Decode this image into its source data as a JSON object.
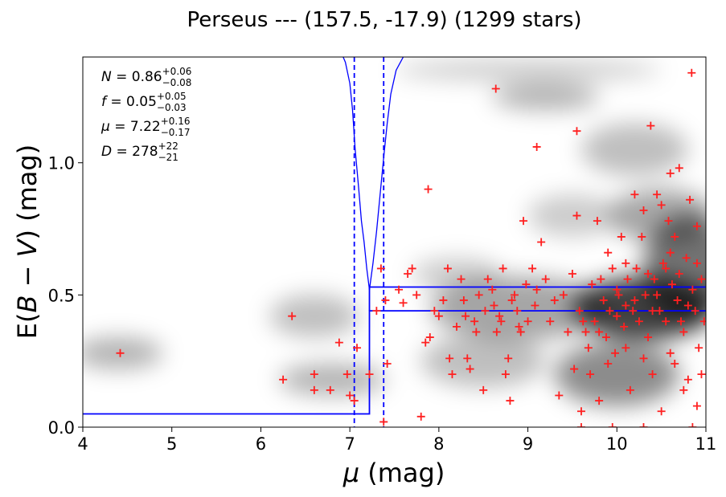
{
  "chart_data": {
    "type": "scatter",
    "title": "Perseus --- (157.5, -17.9) (1299 stars)",
    "xlabel_symbol": "μ",
    "xlabel_unit": " (mag)",
    "ylabel_prefix": "E(",
    "ylabel_symbol": "B − V",
    "ylabel_unit": ") (mag)",
    "xlim": [
      4,
      11
    ],
    "ylim": [
      0,
      1.4
    ],
    "xticks": [
      {
        "value": 4,
        "label": "4"
      },
      {
        "value": 5,
        "label": "5"
      },
      {
        "value": 6,
        "label": "6"
      },
      {
        "value": 7,
        "label": "7"
      },
      {
        "value": 8,
        "label": "8"
      },
      {
        "value": 9,
        "label": "9"
      },
      {
        "value": 10,
        "label": "10"
      },
      {
        "value": 11,
        "label": "11"
      }
    ],
    "yticks": [
      {
        "value": 0.0,
        "label": "0.0"
      },
      {
        "value": 0.5,
        "label": "0.5"
      },
      {
        "value": 1.0,
        "label": "1.0"
      }
    ],
    "colors": {
      "points": "#ff2020",
      "model": "#0000ff",
      "density": "#000000"
    },
    "fit_parameters": [
      {
        "symbol": "N",
        "value": "0.86",
        "plus": "+0.06",
        "minus": "−0.08"
      },
      {
        "symbol": "f",
        "value": "0.05",
        "plus": "+0.05",
        "minus": "−0.03"
      },
      {
        "symbol": "μ",
        "value": "7.22",
        "plus": "+0.16",
        "minus": "−0.17"
      },
      {
        "symbol": "D",
        "value": "278",
        "plus": "+22",
        "minus": "−21"
      }
    ],
    "model": {
      "foreground_reddening": 0.05,
      "step_distance": 7.22,
      "step_distance_low": 7.05,
      "step_distance_high": 7.38,
      "reddening_band": [
        0.44,
        0.53
      ],
      "band_start": 7.22
    },
    "density_blobs": [
      {
        "x": 4.4,
        "y": 0.28,
        "sx": 0.5,
        "sy": 0.06,
        "w": 0.3
      },
      {
        "x": 6.6,
        "y": 0.42,
        "sx": 0.5,
        "sy": 0.08,
        "w": 0.25
      },
      {
        "x": 6.8,
        "y": 0.18,
        "sx": 0.6,
        "sy": 0.06,
        "w": 0.3
      },
      {
        "x": 8.9,
        "y": 0.45,
        "sx": 1.0,
        "sy": 0.12,
        "w": 0.35
      },
      {
        "x": 10.3,
        "y": 0.45,
        "sx": 0.8,
        "sy": 0.12,
        "w": 0.75
      },
      {
        "x": 10.8,
        "y": 0.6,
        "sx": 0.5,
        "sy": 0.2,
        "w": 0.55
      },
      {
        "x": 10.0,
        "y": 0.2,
        "sx": 0.7,
        "sy": 0.12,
        "w": 0.45
      },
      {
        "x": 10.5,
        "y": 0.8,
        "sx": 0.6,
        "sy": 0.1,
        "w": 0.35
      },
      {
        "x": 8.5,
        "y": 0.25,
        "sx": 0.7,
        "sy": 0.1,
        "w": 0.25
      },
      {
        "x": 8.2,
        "y": 0.58,
        "sx": 0.5,
        "sy": 0.06,
        "w": 0.2
      },
      {
        "x": 9.2,
        "y": 1.25,
        "sx": 0.6,
        "sy": 0.05,
        "w": 0.3
      },
      {
        "x": 10.2,
        "y": 1.05,
        "sx": 0.6,
        "sy": 0.1,
        "w": 0.25
      },
      {
        "x": 9.0,
        "y": 1.35,
        "sx": 1.5,
        "sy": 0.04,
        "w": 0.2
      },
      {
        "x": 9.5,
        "y": 0.8,
        "sx": 0.5,
        "sy": 0.08,
        "w": 0.2
      }
    ],
    "points": [
      [
        4.42,
        0.28
      ],
      [
        6.25,
        0.18
      ],
      [
        6.35,
        0.42
      ],
      [
        6.6,
        0.2
      ],
      [
        6.6,
        0.14
      ],
      [
        6.78,
        0.14
      ],
      [
        6.88,
        0.32
      ],
      [
        6.97,
        0.2
      ],
      [
        7.0,
        0.12
      ],
      [
        7.05,
        0.1
      ],
      [
        7.08,
        0.3
      ],
      [
        7.22,
        0.2
      ],
      [
        7.3,
        0.44
      ],
      [
        7.35,
        0.6
      ],
      [
        7.4,
        0.48
      ],
      [
        7.42,
        0.24
      ],
      [
        7.38,
        0.02
      ],
      [
        7.55,
        0.52
      ],
      [
        7.6,
        0.47
      ],
      [
        7.65,
        0.58
      ],
      [
        7.7,
        0.6
      ],
      [
        7.75,
        0.5
      ],
      [
        7.8,
        0.04
      ],
      [
        7.85,
        0.32
      ],
      [
        7.88,
        0.9
      ],
      [
        7.9,
        0.34
      ],
      [
        7.95,
        0.44
      ],
      [
        8.0,
        0.42
      ],
      [
        8.05,
        0.48
      ],
      [
        8.1,
        0.6
      ],
      [
        8.12,
        0.26
      ],
      [
        8.15,
        0.2
      ],
      [
        8.2,
        0.38
      ],
      [
        8.25,
        0.56
      ],
      [
        8.28,
        0.48
      ],
      [
        8.3,
        0.42
      ],
      [
        8.32,
        0.26
      ],
      [
        8.35,
        0.22
      ],
      [
        8.4,
        0.4
      ],
      [
        8.42,
        0.36
      ],
      [
        8.45,
        0.5
      ],
      [
        8.5,
        0.14
      ],
      [
        8.52,
        0.44
      ],
      [
        8.55,
        0.56
      ],
      [
        8.6,
        0.52
      ],
      [
        8.62,
        0.46
      ],
      [
        8.65,
        0.36
      ],
      [
        8.68,
        0.42
      ],
      [
        8.7,
        0.4
      ],
      [
        8.72,
        0.6
      ],
      [
        8.75,
        0.2
      ],
      [
        8.78,
        0.26
      ],
      [
        8.8,
        0.1
      ],
      [
        8.82,
        0.48
      ],
      [
        8.85,
        0.5
      ],
      [
        8.88,
        0.44
      ],
      [
        8.9,
        0.38
      ],
      [
        8.92,
        0.36
      ],
      [
        8.95,
        0.78
      ],
      [
        8.98,
        0.54
      ],
      [
        9.0,
        0.4
      ],
      [
        9.05,
        0.6
      ],
      [
        9.08,
        0.46
      ],
      [
        9.1,
        0.52
      ],
      [
        9.15,
        0.7
      ],
      [
        9.2,
        0.56
      ],
      [
        9.25,
        0.4
      ],
      [
        9.3,
        0.48
      ],
      [
        9.35,
        0.12
      ],
      [
        9.4,
        0.5
      ],
      [
        9.45,
        0.36
      ],
      [
        9.5,
        0.58
      ],
      [
        9.52,
        0.22
      ],
      [
        9.55,
        0.8
      ],
      [
        9.58,
        0.44
      ],
      [
        9.6,
        0.06
      ],
      [
        9.62,
        0.4
      ],
      [
        9.65,
        0.36
      ],
      [
        9.68,
        0.3
      ],
      [
        9.7,
        0.2
      ],
      [
        9.72,
        0.54
      ],
      [
        9.75,
        0.4
      ],
      [
        9.78,
        0.78
      ],
      [
        9.8,
        0.1
      ],
      [
        9.82,
        0.56
      ],
      [
        9.85,
        0.48
      ],
      [
        9.88,
        0.34
      ],
      [
        9.9,
        0.24
      ],
      [
        9.92,
        0.44
      ],
      [
        9.95,
        0.6
      ],
      [
        9.98,
        0.28
      ],
      [
        10.0,
        0.42
      ],
      [
        10.02,
        0.5
      ],
      [
        10.05,
        0.72
      ],
      [
        10.08,
        0.38
      ],
      [
        10.1,
        0.3
      ],
      [
        10.12,
        0.56
      ],
      [
        10.15,
        0.14
      ],
      [
        10.18,
        0.44
      ],
      [
        10.2,
        0.88
      ],
      [
        10.22,
        0.6
      ],
      [
        10.25,
        0.4
      ],
      [
        10.28,
        0.72
      ],
      [
        10.3,
        0.0
      ],
      [
        10.32,
        0.5
      ],
      [
        10.35,
        0.34
      ],
      [
        10.38,
        1.14
      ],
      [
        10.4,
        0.2
      ],
      [
        10.42,
        0.56
      ],
      [
        10.45,
        0.88
      ],
      [
        10.48,
        0.44
      ],
      [
        10.5,
        0.06
      ],
      [
        10.52,
        0.62
      ],
      [
        10.55,
        0.4
      ],
      [
        10.58,
        0.78
      ],
      [
        10.6,
        0.28
      ],
      [
        10.62,
        0.54
      ],
      [
        10.65,
        0.72
      ],
      [
        10.68,
        0.48
      ],
      [
        10.7,
        0.98
      ],
      [
        10.72,
        0.4
      ],
      [
        10.75,
        0.36
      ],
      [
        10.78,
        0.64
      ],
      [
        10.8,
        0.18
      ],
      [
        10.82,
        0.86
      ],
      [
        10.85,
        0.52
      ],
      [
        10.88,
        0.44
      ],
      [
        10.9,
        0.62
      ],
      [
        10.92,
        0.3
      ],
      [
        10.95,
        0.56
      ],
      [
        10.98,
        0.4
      ],
      [
        10.84,
        1.34
      ],
      [
        9.1,
        1.06
      ],
      [
        9.55,
        1.12
      ],
      [
        8.64,
        1.28
      ],
      [
        10.9,
        0.08
      ],
      [
        10.3,
        0.26
      ],
      [
        10.6,
        0.66
      ],
      [
        10.45,
        0.5
      ],
      [
        10.7,
        0.58
      ],
      [
        10.8,
        0.46
      ],
      [
        10.55,
        0.6
      ],
      [
        10.4,
        0.44
      ],
      [
        10.9,
        0.76
      ],
      [
        10.3,
        0.82
      ],
      [
        10.1,
        0.62
      ],
      [
        9.9,
        0.66
      ],
      [
        10.0,
        0.52
      ],
      [
        10.2,
        0.48
      ],
      [
        10.65,
        0.24
      ],
      [
        10.75,
        0.14
      ],
      [
        10.95,
        0.2
      ],
      [
        10.5,
        0.84
      ],
      [
        10.6,
        0.96
      ],
      [
        10.35,
        0.58
      ],
      [
        9.6,
        0.0
      ],
      [
        9.95,
        0.0
      ],
      [
        10.85,
        0.0
      ],
      [
        9.8,
        0.36
      ],
      [
        10.1,
        0.46
      ]
    ],
    "model_curve": [
      [
        6.9,
        1.42
      ],
      [
        6.95,
        1.38
      ],
      [
        7.0,
        1.3
      ],
      [
        7.03,
        1.2
      ],
      [
        7.06,
        1.05
      ],
      [
        7.1,
        0.9
      ],
      [
        7.13,
        0.78
      ],
      [
        7.16,
        0.7
      ],
      [
        7.19,
        0.6
      ],
      [
        7.22,
        0.52
      ],
      [
        7.26,
        0.62
      ],
      [
        7.3,
        0.74
      ],
      [
        7.34,
        0.88
      ],
      [
        7.38,
        1.02
      ],
      [
        7.42,
        1.15
      ],
      [
        7.46,
        1.26
      ],
      [
        7.52,
        1.35
      ],
      [
        7.6,
        1.4
      ],
      [
        7.7,
        1.42
      ]
    ]
  }
}
